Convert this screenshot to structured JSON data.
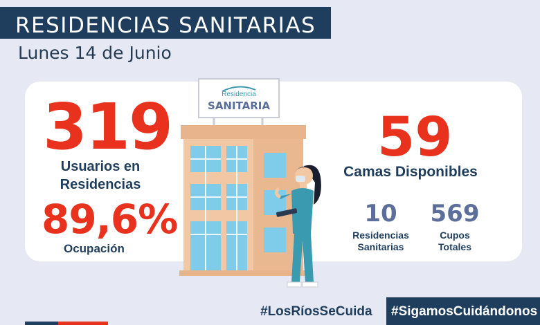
{
  "header": {
    "title": "RESIDENCIAS SANITARIAS",
    "date": "Lunes 14 de Junio"
  },
  "stats": {
    "usuarios_value": "319",
    "usuarios_label_1": "Usuarios en",
    "usuarios_label_2": "Residencias",
    "ocupacion_value": "89,6%",
    "ocupacion_label": "Ocupación",
    "camas_value": "59",
    "camas_label": "Camas Disponibles",
    "residencias_value": "10",
    "residencias_label_1": "Residencias",
    "residencias_label_2": "Sanitarias",
    "cupos_value": "569",
    "cupos_label_1": "Cupos",
    "cupos_label_2": "Totales"
  },
  "sign": {
    "small": "Residencia",
    "big": "SANITARIA"
  },
  "footer": {
    "hashtag_1": "#LosRíosSeCuida",
    "hashtag_2": "#SigamosCuidándonos"
  },
  "colors": {
    "navy": "#1f3d5c",
    "red": "#e8321e",
    "slate": "#5b6f9a",
    "background": "#e6e9f3",
    "building": "#f2c7a4",
    "window": "#7fcbea",
    "teal": "#3a9bb0"
  }
}
